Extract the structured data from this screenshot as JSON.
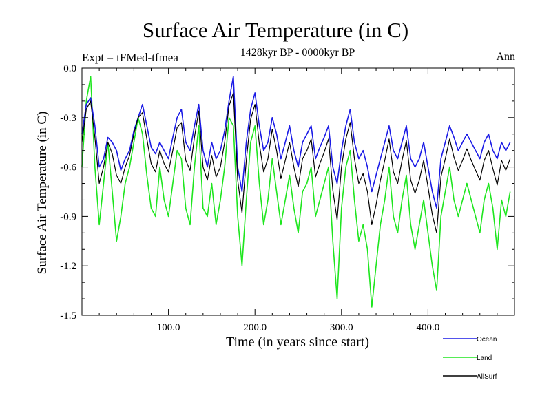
{
  "chart_data": {
    "type": "line",
    "title": "Surface Air Temperature (in C)",
    "subtitle_left": "Expt = tFMed-tfmea",
    "subtitle_center": "1428kyr BP - 0000kyr BP",
    "subtitle_right": "Ann",
    "xlabel": "Time (in years since start)",
    "ylabel": "Surface Air Temperature (in C)",
    "xlim": [
      0,
      500
    ],
    "ylim": [
      -1.5,
      0.0
    ],
    "x_tick_values": [
      100,
      200,
      300,
      400
    ],
    "x_tick_labels": [
      "100.0",
      "200.0",
      "300.0",
      "400.0"
    ],
    "y_tick_values": [
      0.0,
      -0.3,
      -0.6,
      -0.9,
      -1.2,
      -1.5
    ],
    "y_tick_labels": [
      "0.0",
      "-0.3",
      "-0.6",
      "-0.9",
      "-1.2",
      "-1.5"
    ],
    "series": [
      {
        "name": "Ocean",
        "color": "#1a1ae6",
        "x": [
          0,
          5,
          10,
          15,
          20,
          25,
          30,
          35,
          40,
          45,
          50,
          55,
          60,
          65,
          70,
          75,
          80,
          85,
          90,
          95,
          100,
          105,
          110,
          115,
          120,
          125,
          130,
          135,
          140,
          145,
          150,
          155,
          160,
          165,
          170,
          175,
          180,
          185,
          190,
          195,
          200,
          205,
          210,
          215,
          220,
          225,
          230,
          235,
          240,
          245,
          250,
          255,
          260,
          265,
          270,
          275,
          280,
          285,
          290,
          295,
          300,
          305,
          310,
          315,
          320,
          325,
          330,
          335,
          340,
          345,
          350,
          355,
          360,
          365,
          370,
          375,
          380,
          385,
          390,
          395,
          400,
          405,
          410,
          415,
          420,
          425,
          430,
          435,
          440,
          445,
          450,
          455,
          460,
          465,
          470,
          475,
          480,
          485,
          490,
          495
        ],
        "values": [
          -0.4,
          -0.22,
          -0.18,
          -0.35,
          -0.6,
          -0.55,
          -0.42,
          -0.45,
          -0.5,
          -0.62,
          -0.55,
          -0.5,
          -0.38,
          -0.3,
          -0.22,
          -0.35,
          -0.48,
          -0.52,
          -0.45,
          -0.5,
          -0.55,
          -0.42,
          -0.3,
          -0.25,
          -0.45,
          -0.5,
          -0.35,
          -0.22,
          -0.5,
          -0.6,
          -0.45,
          -0.55,
          -0.5,
          -0.38,
          -0.2,
          -0.05,
          -0.6,
          -0.75,
          -0.45,
          -0.25,
          -0.15,
          -0.35,
          -0.5,
          -0.45,
          -0.3,
          -0.4,
          -0.55,
          -0.45,
          -0.35,
          -0.5,
          -0.6,
          -0.45,
          -0.4,
          -0.35,
          -0.55,
          -0.48,
          -0.42,
          -0.35,
          -0.6,
          -0.7,
          -0.5,
          -0.35,
          -0.25,
          -0.45,
          -0.55,
          -0.5,
          -0.6,
          -0.75,
          -0.65,
          -0.55,
          -0.45,
          -0.35,
          -0.5,
          -0.55,
          -0.45,
          -0.35,
          -0.55,
          -0.6,
          -0.55,
          -0.45,
          -0.6,
          -0.75,
          -0.85,
          -0.55,
          -0.45,
          -0.35,
          -0.42,
          -0.5,
          -0.45,
          -0.4,
          -0.45,
          -0.5,
          -0.55,
          -0.45,
          -0.4,
          -0.5,
          -0.55,
          -0.45,
          -0.5,
          -0.45
        ]
      },
      {
        "name": "Land",
        "color": "#1ee61e",
        "x": [
          0,
          5,
          10,
          15,
          20,
          25,
          30,
          35,
          40,
          45,
          50,
          55,
          60,
          65,
          70,
          75,
          80,
          85,
          90,
          95,
          100,
          105,
          110,
          115,
          120,
          125,
          130,
          135,
          140,
          145,
          150,
          155,
          160,
          165,
          170,
          175,
          180,
          185,
          190,
          195,
          200,
          205,
          210,
          215,
          220,
          225,
          230,
          235,
          240,
          245,
          250,
          255,
          260,
          265,
          270,
          275,
          280,
          285,
          290,
          295,
          300,
          305,
          310,
          315,
          320,
          325,
          330,
          335,
          340,
          345,
          350,
          355,
          360,
          365,
          370,
          375,
          380,
          385,
          390,
          395,
          400,
          405,
          410,
          415,
          420,
          425,
          430,
          435,
          440,
          445,
          450,
          455,
          460,
          465,
          470,
          475,
          480,
          485,
          490,
          495
        ],
        "values": [
          -0.6,
          -0.2,
          -0.05,
          -0.6,
          -0.95,
          -0.7,
          -0.45,
          -0.75,
          -1.05,
          -0.9,
          -0.7,
          -0.6,
          -0.45,
          -0.3,
          -0.4,
          -0.65,
          -0.85,
          -0.9,
          -0.6,
          -0.8,
          -0.9,
          -0.7,
          -0.5,
          -0.55,
          -0.85,
          -0.95,
          -0.6,
          -0.35,
          -0.85,
          -0.9,
          -0.7,
          -0.95,
          -0.8,
          -0.6,
          -0.3,
          -0.35,
          -0.9,
          -1.2,
          -0.8,
          -0.45,
          -0.35,
          -0.7,
          -0.95,
          -0.8,
          -0.55,
          -0.75,
          -0.95,
          -0.8,
          -0.65,
          -0.85,
          -1.0,
          -0.75,
          -0.7,
          -0.6,
          -0.9,
          -0.8,
          -0.7,
          -0.6,
          -1.05,
          -1.4,
          -0.85,
          -0.6,
          -0.5,
          -0.8,
          -1.05,
          -0.95,
          -1.1,
          -1.45,
          -1.2,
          -0.95,
          -0.8,
          -0.6,
          -0.9,
          -1.0,
          -0.8,
          -0.65,
          -0.95,
          -1.1,
          -0.95,
          -0.8,
          -1.0,
          -1.2,
          -1.35,
          -0.9,
          -0.75,
          -0.6,
          -0.8,
          -0.9,
          -0.8,
          -0.7,
          -0.8,
          -0.9,
          -1.0,
          -0.8,
          -0.7,
          -0.85,
          -1.1,
          -0.8,
          -0.9,
          -0.75
        ]
      },
      {
        "name": "AllSurf",
        "color": "#000000",
        "x": [
          0,
          5,
          10,
          15,
          20,
          25,
          30,
          35,
          40,
          45,
          50,
          55,
          60,
          65,
          70,
          75,
          80,
          85,
          90,
          95,
          100,
          105,
          110,
          115,
          120,
          125,
          130,
          135,
          140,
          145,
          150,
          155,
          160,
          165,
          170,
          175,
          180,
          185,
          190,
          195,
          200,
          205,
          210,
          215,
          220,
          225,
          230,
          235,
          240,
          245,
          250,
          255,
          260,
          265,
          270,
          275,
          280,
          285,
          290,
          295,
          300,
          305,
          310,
          315,
          320,
          325,
          330,
          335,
          340,
          345,
          350,
          355,
          360,
          365,
          370,
          375,
          380,
          385,
          390,
          395,
          400,
          405,
          410,
          415,
          420,
          425,
          430,
          435,
          440,
          445,
          450,
          455,
          460,
          465,
          470,
          475,
          480,
          485,
          490,
          495
        ],
        "values": [
          -0.45,
          -0.25,
          -0.2,
          -0.42,
          -0.7,
          -0.6,
          -0.45,
          -0.52,
          -0.65,
          -0.7,
          -0.6,
          -0.53,
          -0.4,
          -0.3,
          -0.27,
          -0.43,
          -0.58,
          -0.63,
          -0.5,
          -0.58,
          -0.63,
          -0.5,
          -0.36,
          -0.33,
          -0.56,
          -0.62,
          -0.42,
          -0.26,
          -0.6,
          -0.68,
          -0.53,
          -0.66,
          -0.6,
          -0.45,
          -0.23,
          -0.15,
          -0.68,
          -0.88,
          -0.56,
          -0.31,
          -0.22,
          -0.46,
          -0.63,
          -0.55,
          -0.37,
          -0.5,
          -0.67,
          -0.56,
          -0.45,
          -0.6,
          -0.72,
          -0.55,
          -0.5,
          -0.43,
          -0.66,
          -0.58,
          -0.51,
          -0.43,
          -0.74,
          -0.92,
          -0.6,
          -0.43,
          -0.33,
          -0.55,
          -0.7,
          -0.64,
          -0.75,
          -0.95,
          -0.83,
          -0.68,
          -0.56,
          -0.43,
          -0.63,
          -0.7,
          -0.56,
          -0.44,
          -0.68,
          -0.76,
          -0.68,
          -0.56,
          -0.72,
          -0.89,
          -1.0,
          -0.66,
          -0.55,
          -0.43,
          -0.54,
          -0.62,
          -0.56,
          -0.49,
          -0.56,
          -0.62,
          -0.68,
          -0.56,
          -0.5,
          -0.61,
          -0.71,
          -0.56,
          -0.62,
          -0.55
        ]
      }
    ],
    "legend_position": "bottom-right"
  }
}
